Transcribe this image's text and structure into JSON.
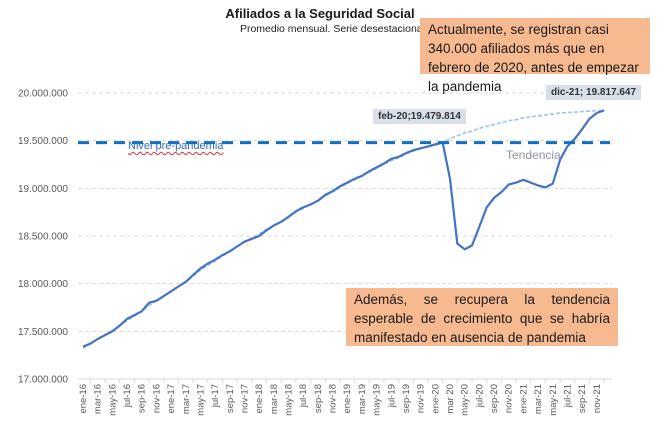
{
  "chart_data": {
    "type": "line",
    "title": "Afiliados a la Seguridad Social",
    "subtitle": "Promedio mensual. Serie desestacionalizada",
    "xlabel": "",
    "ylabel": "",
    "ylim": [
      17000000,
      20000000
    ],
    "yticks": [
      17000000,
      17500000,
      18000000,
      18500000,
      19000000,
      19500000,
      20000000
    ],
    "ytick_labels": [
      "17.000.000",
      "17.500.000",
      "18.000.000",
      "18.500.000",
      "19.000.000",
      "19.500.000",
      "20.000.000"
    ],
    "grid": true,
    "x_tick_labels": [
      "ene-16",
      "mar-16",
      "may-16",
      "jul-16",
      "sep-16",
      "nov-16",
      "ene-17",
      "mar-17",
      "may-17",
      "jul-17",
      "sep-17",
      "nov-17",
      "ene-18",
      "mar-18",
      "may-18",
      "jul-18",
      "sep-18",
      "nov-18",
      "ene-19",
      "mar-19",
      "may-19",
      "jul-19",
      "sep-19",
      "nov-19",
      "ene-20",
      "mar 20",
      "may-20",
      "jul-20",
      "sep-20",
      "nov-20",
      "ene-21",
      "mar-21",
      "may-21",
      "jul-21",
      "sep-21",
      "nov-21"
    ],
    "x": [
      "ene-16",
      "feb-16",
      "mar-16",
      "abr-16",
      "may-16",
      "jun-16",
      "jul-16",
      "ago-16",
      "sep-16",
      "oct-16",
      "nov-16",
      "dic-16",
      "ene-17",
      "feb-17",
      "mar-17",
      "abr-17",
      "may-17",
      "jun-17",
      "jul-17",
      "ago-17",
      "sep-17",
      "oct-17",
      "nov-17",
      "dic-17",
      "ene-18",
      "feb-18",
      "mar-18",
      "abr-18",
      "may-18",
      "jun-18",
      "jul-18",
      "ago-18",
      "sep-18",
      "oct-18",
      "nov-18",
      "dic-18",
      "ene-19",
      "feb-19",
      "mar-19",
      "abr-19",
      "may-19",
      "jun-19",
      "jul-19",
      "ago-19",
      "sep-19",
      "oct-19",
      "nov-19",
      "dic-19",
      "ene-20",
      "feb-20",
      "mar-20",
      "abr-20",
      "may-20",
      "jun-20",
      "jul-20",
      "ago-20",
      "sep-20",
      "oct-20",
      "nov-20",
      "dic-20",
      "ene-21",
      "feb-21",
      "mar-21",
      "abr-21",
      "may-21",
      "jun-21",
      "jul-21",
      "ago-21",
      "sep-21",
      "oct-21",
      "nov-21",
      "dic-21"
    ],
    "series": [
      {
        "name": "Afiliados",
        "style": "solid",
        "color": "#4472c4",
        "values": [
          17340000,
          17370000,
          17420000,
          17460000,
          17500000,
          17560000,
          17630000,
          17670000,
          17710000,
          17800000,
          17820000,
          17870000,
          17920000,
          17970000,
          18020000,
          18090000,
          18160000,
          18210000,
          18250000,
          18300000,
          18340000,
          18390000,
          18440000,
          18470000,
          18500000,
          18560000,
          18610000,
          18650000,
          18700000,
          18760000,
          18800000,
          18830000,
          18870000,
          18930000,
          18970000,
          19020000,
          19060000,
          19100000,
          19130000,
          19180000,
          19220000,
          19260000,
          19310000,
          19330000,
          19370000,
          19400000,
          19420000,
          19440000,
          19460000,
          19479814,
          19100000,
          18420000,
          18360000,
          18400000,
          18600000,
          18800000,
          18900000,
          18960000,
          19040000,
          19060000,
          19090000,
          19060000,
          19030000,
          19010000,
          19050000,
          19300000,
          19440000,
          19520000,
          19620000,
          19730000,
          19790000,
          19817647
        ]
      },
      {
        "name": "Tendencia",
        "style": "dashed",
        "color": "#9dc3e6",
        "values": [
          17320000,
          17370000,
          17420000,
          17460000,
          17510000,
          17560000,
          17610000,
          17660000,
          17710000,
          17770000,
          17820000,
          17870000,
          17920000,
          17970000,
          18020000,
          18080000,
          18140000,
          18190000,
          18240000,
          18290000,
          18340000,
          18390000,
          18440000,
          18480000,
          18520000,
          18570000,
          18610000,
          18650000,
          18700000,
          18750000,
          18790000,
          18830000,
          18870000,
          18920000,
          18960000,
          19010000,
          19050000,
          19090000,
          19130000,
          19170000,
          19210000,
          19250000,
          19290000,
          19320000,
          19360000,
          19390000,
          19420000,
          19440000,
          19470000,
          19479814,
          19520000,
          19550000,
          19580000,
          19600000,
          19630000,
          19650000,
          19670000,
          19690000,
          19710000,
          19720000,
          19740000,
          19750000,
          19760000,
          19770000,
          19780000,
          19790000,
          19795000,
          19800000,
          19805000,
          19810000,
          19815000,
          19817647
        ]
      },
      {
        "name": "Nivel pre-pandemia",
        "style": "dashed-thick",
        "color": "#0f6fc6",
        "constant": 19479814
      }
    ],
    "annotations": {
      "feb20_label": "feb-20;19.479.814",
      "dic21_label": "dic-21; 19.817.647",
      "prepandemia_label": "Nivel pre-pandemia",
      "tendencia_label": "Tendencia",
      "callout_top": "Actualmente, se registran casi 340.000 afiliados más que en febrero de 2020, antes de empezar la pandemia",
      "callout_bottom": "Además, se recupera la tendencia esperable de crecimiento que se habría manifestado en ausencia de pandemia"
    },
    "colors": {
      "callout_bg": "#f7b98f",
      "data_label_bg": "#d9dee9",
      "gridline": "#d9d9d9"
    }
  }
}
